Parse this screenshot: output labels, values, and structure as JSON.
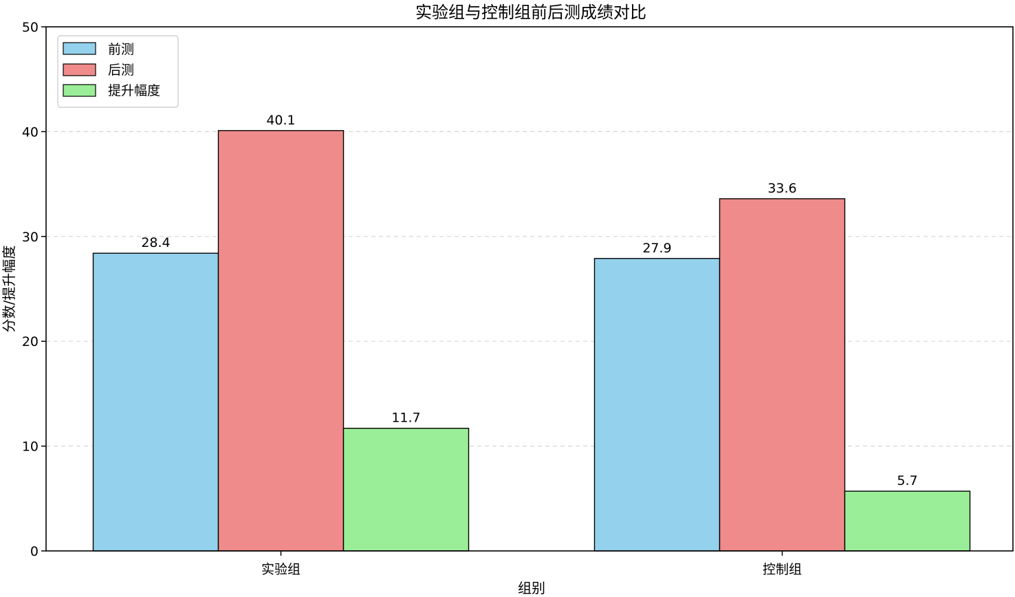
{
  "chart_data": {
    "type": "bar",
    "title": "实验组与控制组前后测成绩对比",
    "xlabel": "组别",
    "ylabel": "分数/提升幅度",
    "categories": [
      "实验组",
      "控制组"
    ],
    "series": [
      {
        "name": "前测",
        "values": [
          28.4,
          27.9
        ],
        "color": "#94d1ed"
      },
      {
        "name": "后测",
        "values": [
          40.1,
          33.6
        ],
        "color": "#f08b8b"
      },
      {
        "name": "提升幅度",
        "values": [
          11.7,
          5.7
        ],
        "color": "#9bee98"
      }
    ],
    "data_labels": [
      [
        "28.4",
        "27.9"
      ],
      [
        "40.1",
        "33.6"
      ],
      [
        "11.7",
        "5.7"
      ]
    ],
    "ylim": [
      0,
      50
    ],
    "yticks": [
      0,
      10,
      20,
      30,
      40,
      50
    ],
    "ytick_labels": [
      "0",
      "10",
      "20",
      "30",
      "40",
      "50"
    ],
    "grid": "horizontal dashed",
    "legend_position": "top-left"
  }
}
